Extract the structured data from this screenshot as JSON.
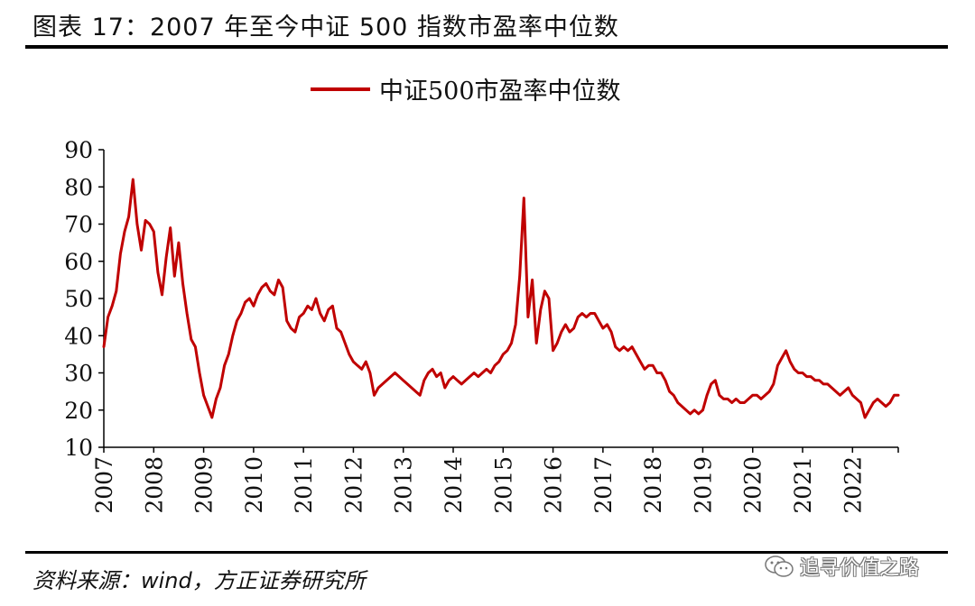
{
  "figure": {
    "title": "图表 17：2007 年至今中证 500 指数市盈率中位数",
    "source": "资料来源：wind，方正证券研究所",
    "watermark": "追寻价值之路"
  },
  "colors": {
    "series": "#c00000",
    "text": "#111111",
    "axis": "#000000"
  },
  "chart_data": {
    "type": "line",
    "title": "",
    "xlabel": "",
    "ylabel": "",
    "ylim": [
      10,
      90
    ],
    "yticks": [
      10,
      20,
      30,
      40,
      50,
      60,
      70,
      80,
      90
    ],
    "xlim": [
      "2007-01",
      "2022-12"
    ],
    "xticks": [
      "2007",
      "2008",
      "2009",
      "2010",
      "2011",
      "2012",
      "2013",
      "2014",
      "2015",
      "2016",
      "2017",
      "2018",
      "2019",
      "2020",
      "2021",
      "2022"
    ],
    "grid": false,
    "legend_position": "top-center",
    "series": [
      {
        "name": "中证500市盈率中位数",
        "color": "#c00000",
        "points": [
          [
            "2007-01",
            37
          ],
          [
            "2007-02",
            45
          ],
          [
            "2007-03",
            48
          ],
          [
            "2007-04",
            52
          ],
          [
            "2007-05",
            62
          ],
          [
            "2007-06",
            68
          ],
          [
            "2007-07",
            72
          ],
          [
            "2007-08",
            82
          ],
          [
            "2007-09",
            70
          ],
          [
            "2007-10",
            63
          ],
          [
            "2007-11",
            71
          ],
          [
            "2007-12",
            70
          ],
          [
            "2008-01",
            68
          ],
          [
            "2008-02",
            57
          ],
          [
            "2008-03",
            51
          ],
          [
            "2008-04",
            61
          ],
          [
            "2008-05",
            69
          ],
          [
            "2008-06",
            56
          ],
          [
            "2008-07",
            65
          ],
          [
            "2008-08",
            54
          ],
          [
            "2008-09",
            46
          ],
          [
            "2008-10",
            39
          ],
          [
            "2008-11",
            37
          ],
          [
            "2008-12",
            30
          ],
          [
            "2009-01",
            24
          ],
          [
            "2009-02",
            21
          ],
          [
            "2009-03",
            18
          ],
          [
            "2009-04",
            23
          ],
          [
            "2009-05",
            26
          ],
          [
            "2009-06",
            32
          ],
          [
            "2009-07",
            35
          ],
          [
            "2009-08",
            40
          ],
          [
            "2009-09",
            44
          ],
          [
            "2009-10",
            46
          ],
          [
            "2009-11",
            49
          ],
          [
            "2009-12",
            50
          ],
          [
            "2010-01",
            48
          ],
          [
            "2010-02",
            51
          ],
          [
            "2010-03",
            53
          ],
          [
            "2010-04",
            54
          ],
          [
            "2010-05",
            52
          ],
          [
            "2010-06",
            51
          ],
          [
            "2010-07",
            55
          ],
          [
            "2010-08",
            53
          ],
          [
            "2010-09",
            44
          ],
          [
            "2010-10",
            42
          ],
          [
            "2010-11",
            41
          ],
          [
            "2010-12",
            45
          ],
          [
            "2011-01",
            46
          ],
          [
            "2011-02",
            48
          ],
          [
            "2011-03",
            47
          ],
          [
            "2011-04",
            50
          ],
          [
            "2011-05",
            46
          ],
          [
            "2011-06",
            44
          ],
          [
            "2011-07",
            47
          ],
          [
            "2011-08",
            48
          ],
          [
            "2011-09",
            42
          ],
          [
            "2011-10",
            41
          ],
          [
            "2011-11",
            38
          ],
          [
            "2011-12",
            35
          ],
          [
            "2012-01",
            33
          ],
          [
            "2012-02",
            32
          ],
          [
            "2012-03",
            31
          ],
          [
            "2012-04",
            33
          ],
          [
            "2012-05",
            30
          ],
          [
            "2012-06",
            24
          ],
          [
            "2012-07",
            26
          ],
          [
            "2012-08",
            27
          ],
          [
            "2012-09",
            28
          ],
          [
            "2012-10",
            29
          ],
          [
            "2012-11",
            30
          ],
          [
            "2012-12",
            29
          ],
          [
            "2013-01",
            28
          ],
          [
            "2013-02",
            27
          ],
          [
            "2013-03",
            26
          ],
          [
            "2013-04",
            25
          ],
          [
            "2013-05",
            24
          ],
          [
            "2013-06",
            28
          ],
          [
            "2013-07",
            30
          ],
          [
            "2013-08",
            31
          ],
          [
            "2013-09",
            29
          ],
          [
            "2013-10",
            30
          ],
          [
            "2013-11",
            26
          ],
          [
            "2013-12",
            28
          ],
          [
            "2014-01",
            29
          ],
          [
            "2014-02",
            28
          ],
          [
            "2014-03",
            27
          ],
          [
            "2014-04",
            28
          ],
          [
            "2014-05",
            29
          ],
          [
            "2014-06",
            30
          ],
          [
            "2014-07",
            29
          ],
          [
            "2014-08",
            30
          ],
          [
            "2014-09",
            31
          ],
          [
            "2014-10",
            30
          ],
          [
            "2014-11",
            32
          ],
          [
            "2014-12",
            33
          ],
          [
            "2015-01",
            35
          ],
          [
            "2015-02",
            36
          ],
          [
            "2015-03",
            38
          ],
          [
            "2015-04",
            43
          ],
          [
            "2015-05",
            56
          ],
          [
            "2015-06",
            77
          ],
          [
            "2015-07",
            45
          ],
          [
            "2015-08",
            55
          ],
          [
            "2015-09",
            38
          ],
          [
            "2015-10",
            47
          ],
          [
            "2015-11",
            52
          ],
          [
            "2015-12",
            50
          ],
          [
            "2016-01",
            36
          ],
          [
            "2016-02",
            38
          ],
          [
            "2016-03",
            41
          ],
          [
            "2016-04",
            43
          ],
          [
            "2016-05",
            41
          ],
          [
            "2016-06",
            42
          ],
          [
            "2016-07",
            45
          ],
          [
            "2016-08",
            46
          ],
          [
            "2016-09",
            45
          ],
          [
            "2016-10",
            46
          ],
          [
            "2016-11",
            46
          ],
          [
            "2016-12",
            44
          ],
          [
            "2017-01",
            42
          ],
          [
            "2017-02",
            43
          ],
          [
            "2017-03",
            41
          ],
          [
            "2017-04",
            37
          ],
          [
            "2017-05",
            36
          ],
          [
            "2017-06",
            37
          ],
          [
            "2017-07",
            36
          ],
          [
            "2017-08",
            37
          ],
          [
            "2017-09",
            35
          ],
          [
            "2017-10",
            33
          ],
          [
            "2017-11",
            31
          ],
          [
            "2017-12",
            32
          ],
          [
            "2018-01",
            32
          ],
          [
            "2018-02",
            30
          ],
          [
            "2018-03",
            30
          ],
          [
            "2018-04",
            28
          ],
          [
            "2018-05",
            25
          ],
          [
            "2018-06",
            24
          ],
          [
            "2018-07",
            22
          ],
          [
            "2018-08",
            21
          ],
          [
            "2018-09",
            20
          ],
          [
            "2018-10",
            19
          ],
          [
            "2018-11",
            20
          ],
          [
            "2018-12",
            19
          ],
          [
            "2019-01",
            20
          ],
          [
            "2019-02",
            24
          ],
          [
            "2019-03",
            27
          ],
          [
            "2019-04",
            28
          ],
          [
            "2019-05",
            24
          ],
          [
            "2019-06",
            23
          ],
          [
            "2019-07",
            23
          ],
          [
            "2019-08",
            22
          ],
          [
            "2019-09",
            23
          ],
          [
            "2019-10",
            22
          ],
          [
            "2019-11",
            22
          ],
          [
            "2019-12",
            23
          ],
          [
            "2020-01",
            24
          ],
          [
            "2020-02",
            24
          ],
          [
            "2020-03",
            23
          ],
          [
            "2020-04",
            24
          ],
          [
            "2020-05",
            25
          ],
          [
            "2020-06",
            27
          ],
          [
            "2020-07",
            32
          ],
          [
            "2020-08",
            34
          ],
          [
            "2020-09",
            36
          ],
          [
            "2020-10",
            33
          ],
          [
            "2020-11",
            31
          ],
          [
            "2020-12",
            30
          ],
          [
            "2021-01",
            30
          ],
          [
            "2021-02",
            29
          ],
          [
            "2021-03",
            29
          ],
          [
            "2021-04",
            28
          ],
          [
            "2021-05",
            28
          ],
          [
            "2021-06",
            27
          ],
          [
            "2021-07",
            27
          ],
          [
            "2021-08",
            26
          ],
          [
            "2021-09",
            25
          ],
          [
            "2021-10",
            24
          ],
          [
            "2021-11",
            25
          ],
          [
            "2021-12",
            26
          ],
          [
            "2022-01",
            24
          ],
          [
            "2022-02",
            23
          ],
          [
            "2022-03",
            22
          ],
          [
            "2022-04",
            18
          ],
          [
            "2022-05",
            20
          ],
          [
            "2022-06",
            22
          ],
          [
            "2022-07",
            23
          ],
          [
            "2022-08",
            22
          ],
          [
            "2022-09",
            21
          ],
          [
            "2022-10",
            22
          ],
          [
            "2022-11",
            24
          ],
          [
            "2022-12",
            24
          ]
        ]
      }
    ]
  }
}
